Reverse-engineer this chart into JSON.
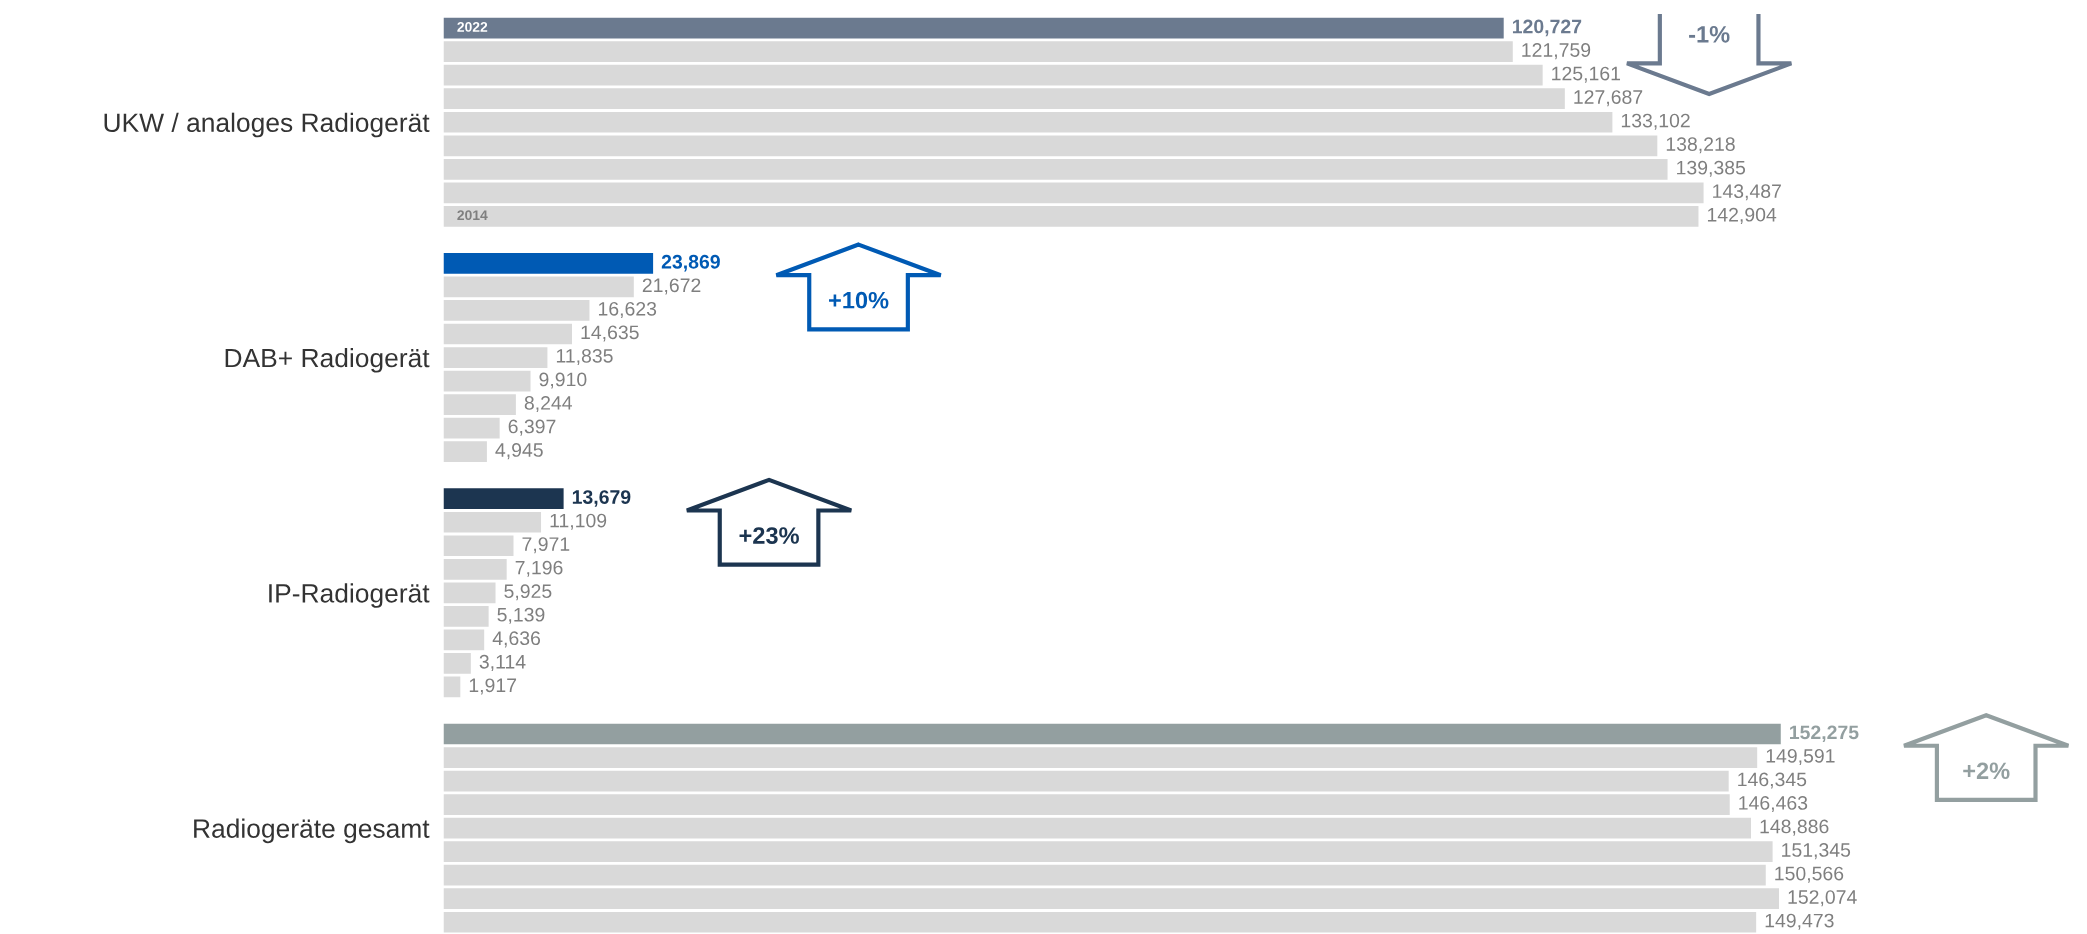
{
  "chart_data": {
    "type": "bar",
    "orientation": "horizontal",
    "tick_labels": "y",
    "grid": false,
    "categories": [
      "UKW / analoges Radiogerät",
      "DAB+ Radiogerät",
      "IP-Radiogerät",
      "Radiogeräte gesamt"
    ],
    "series": [
      {
        "name": "2022",
        "colors": [
          "#6b7a8f",
          "#005ab4",
          "#1c3550",
          "#939fa0"
        ],
        "values": [
          120727,
          23869,
          13679,
          152275
        ],
        "value_labels": [
          "120,727",
          "23,869",
          "13,679",
          "152,275"
        ]
      },
      {
        "color": "#d9d9d9",
        "values": [
          121759,
          21672,
          11109,
          149591
        ],
        "value_labels": [
          "121,759",
          "21,672",
          "11,109",
          "149,591"
        ]
      },
      {
        "color": "#d9d9d9",
        "values": [
          125161,
          16623,
          7971,
          146345
        ],
        "value_labels": [
          "125,161",
          "16,623",
          "7,971",
          "146,345"
        ]
      },
      {
        "color": "#d9d9d9",
        "values": [
          127687,
          14635,
          7196,
          146463
        ],
        "value_labels": [
          "127,687",
          "14,635",
          "7,196",
          "146,463"
        ]
      },
      {
        "color": "#d9d9d9",
        "values": [
          133102,
          11835,
          5925,
          148886
        ],
        "value_labels": [
          "133,102",
          "11,835",
          "5,925",
          "148,886"
        ]
      },
      {
        "color": "#d9d9d9",
        "values": [
          138218,
          9910,
          5139,
          151345
        ],
        "value_labels": [
          "138,218",
          "9,910",
          "5,139",
          "151,345"
        ]
      },
      {
        "color": "#d9d9d9",
        "values": [
          139385,
          8244,
          4636,
          150566
        ],
        "value_labels": [
          "139,385",
          "8,244",
          "4,636",
          "150,566"
        ]
      },
      {
        "color": "#d9d9d9",
        "values": [
          143487,
          6397,
          3114,
          152074
        ],
        "value_labels": [
          "143,487",
          "6,397",
          "3,114",
          "152,074"
        ]
      },
      {
        "name": "2014",
        "color": "#d9d9d9",
        "values": [
          142904,
          4945,
          1917,
          149473
        ],
        "value_labels": [
          "142,904",
          "4,945",
          "1,917",
          "149,473"
        ]
      }
    ],
    "annotations": [
      "-1%",
      "+10%",
      "+23%",
      "+2%"
    ]
  }
}
